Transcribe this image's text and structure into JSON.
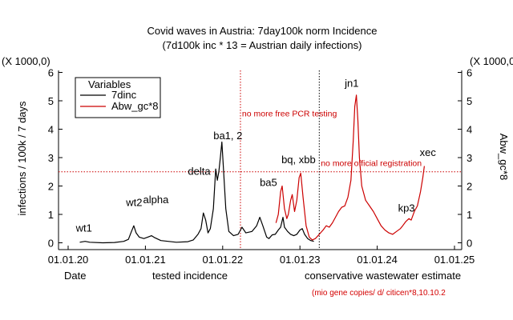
{
  "chart_data": {
    "type": "line",
    "title": "Covid waves in Austria: 7day100k norm Incidence",
    "subtitle": "(7d100k inc * 13 = Austrian daily infections)",
    "ylabel_left": "infections / 100k / 7 days",
    "ylabel_right": "Abw_gc*8",
    "y_multiplier_left": "(X 1000,0)",
    "y_multiplier_right": "(X 1000,0)",
    "xlabel": "Date",
    "x_caption_left": "tested incidence",
    "x_caption_right": "conservative wastewater estimate",
    "x_caption_note": "(mio gene copies/ d/ citicen*8,10.10.2",
    "ylim": [
      0,
      6
    ],
    "xlim": [
      2019.95,
      2025.05
    ],
    "y_ticks": [
      "0",
      "1",
      "2",
      "3",
      "4",
      "5",
      "6"
    ],
    "x_ticks": [
      {
        "label": "01.01.20",
        "value": 2020
      },
      {
        "label": "01.01.21",
        "value": 2021
      },
      {
        "label": "01.01.22",
        "value": 2022
      },
      {
        "label": "01.01.23",
        "value": 2023
      },
      {
        "label": "01.01.24",
        "value": 2024
      },
      {
        "label": "01.01.25",
        "value": 2025
      }
    ],
    "legend": {
      "title": "Variables",
      "position": "top-left"
    },
    "series": [
      {
        "name": "7dinc",
        "color": "#000000",
        "points": [
          [
            2020.15,
            0.02
          ],
          [
            2020.22,
            0.05
          ],
          [
            2020.28,
            0.02
          ],
          [
            2020.45,
            0.0
          ],
          [
            2020.6,
            0.01
          ],
          [
            2020.72,
            0.05
          ],
          [
            2020.78,
            0.12
          ],
          [
            2020.82,
            0.4
          ],
          [
            2020.85,
            0.6
          ],
          [
            2020.88,
            0.35
          ],
          [
            2020.92,
            0.2
          ],
          [
            2020.98,
            0.15
          ],
          [
            2021.03,
            0.2
          ],
          [
            2021.08,
            0.25
          ],
          [
            2021.12,
            0.18
          ],
          [
            2021.2,
            0.08
          ],
          [
            2021.4,
            0.02
          ],
          [
            2021.55,
            0.04
          ],
          [
            2021.62,
            0.1
          ],
          [
            2021.68,
            0.3
          ],
          [
            2021.72,
            0.5
          ],
          [
            2021.75,
            1.05
          ],
          [
            2021.78,
            0.8
          ],
          [
            2021.81,
            0.35
          ],
          [
            2021.84,
            0.5
          ],
          [
            2021.88,
            1.2
          ],
          [
            2021.91,
            2.6
          ],
          [
            2021.93,
            2.2
          ],
          [
            2021.95,
            2.5
          ],
          [
            2021.97,
            3.0
          ],
          [
            2021.99,
            3.55
          ],
          [
            2022.01,
            2.6
          ],
          [
            2022.04,
            1.2
          ],
          [
            2022.08,
            0.4
          ],
          [
            2022.14,
            0.25
          ],
          [
            2022.2,
            0.3
          ],
          [
            2022.25,
            0.55
          ],
          [
            2022.3,
            0.35
          ],
          [
            2022.38,
            0.4
          ],
          [
            2022.44,
            0.6
          ],
          [
            2022.48,
            0.9
          ],
          [
            2022.52,
            0.6
          ],
          [
            2022.57,
            0.2
          ],
          [
            2022.6,
            0.15
          ],
          [
            2022.64,
            0.28
          ],
          [
            2022.68,
            0.3
          ],
          [
            2022.72,
            0.45
          ],
          [
            2022.75,
            0.55
          ],
          [
            2022.78,
            0.9
          ],
          [
            2022.8,
            0.55
          ],
          [
            2022.84,
            0.4
          ],
          [
            2022.88,
            0.3
          ],
          [
            2022.92,
            0.25
          ],
          [
            2022.96,
            0.3
          ],
          [
            2023.0,
            0.45
          ],
          [
            2023.03,
            0.5
          ],
          [
            2023.06,
            0.3
          ],
          [
            2023.1,
            0.15
          ],
          [
            2023.14,
            0.08
          ],
          [
            2023.18,
            0.05
          ]
        ]
      },
      {
        "name": "Abw_gc*8",
        "color": "#cc0000",
        "points": [
          [
            2022.69,
            0.7
          ],
          [
            2022.72,
            1.0
          ],
          [
            2022.75,
            1.8
          ],
          [
            2022.77,
            2.0
          ],
          [
            2022.8,
            1.2
          ],
          [
            2022.83,
            0.85
          ],
          [
            2022.85,
            1.0
          ],
          [
            2022.88,
            1.5
          ],
          [
            2022.9,
            1.7
          ],
          [
            2022.93,
            1.1
          ],
          [
            2022.96,
            1.5
          ],
          [
            2022.99,
            2.3
          ],
          [
            2023.01,
            2.45
          ],
          [
            2023.04,
            1.6
          ],
          [
            2023.08,
            0.6
          ],
          [
            2023.12,
            0.2
          ],
          [
            2023.16,
            0.1
          ],
          [
            2023.2,
            0.15
          ],
          [
            2023.25,
            0.3
          ],
          [
            2023.3,
            0.45
          ],
          [
            2023.34,
            0.6
          ],
          [
            2023.38,
            0.55
          ],
          [
            2023.42,
            0.7
          ],
          [
            2023.46,
            0.9
          ],
          [
            2023.5,
            1.1
          ],
          [
            2023.54,
            1.25
          ],
          [
            2023.58,
            1.3
          ],
          [
            2023.62,
            1.6
          ],
          [
            2023.66,
            2.2
          ],
          [
            2023.69,
            3.6
          ],
          [
            2023.71,
            4.8
          ],
          [
            2023.73,
            5.2
          ],
          [
            2023.75,
            4.3
          ],
          [
            2023.77,
            3.0
          ],
          [
            2023.8,
            2.0
          ],
          [
            2023.85,
            1.5
          ],
          [
            2023.9,
            1.3
          ],
          [
            2023.95,
            1.1
          ],
          [
            2024.0,
            0.85
          ],
          [
            2024.05,
            0.6
          ],
          [
            2024.1,
            0.45
          ],
          [
            2024.15,
            0.35
          ],
          [
            2024.2,
            0.3
          ],
          [
            2024.25,
            0.4
          ],
          [
            2024.3,
            0.5
          ],
          [
            2024.33,
            0.6
          ],
          [
            2024.37,
            0.75
          ],
          [
            2024.41,
            0.85
          ],
          [
            2024.44,
            0.8
          ],
          [
            2024.48,
            1.1
          ],
          [
            2024.52,
            1.3
          ],
          [
            2024.56,
            1.8
          ],
          [
            2024.59,
            2.3
          ],
          [
            2024.61,
            2.7
          ]
        ]
      }
    ],
    "reference_lines": [
      {
        "orientation": "vertical",
        "x": 2022.23,
        "style": "dotted",
        "color": "#cc0000"
      },
      {
        "orientation": "vertical",
        "x": 2023.25,
        "style": "dotted",
        "color": "#000000"
      },
      {
        "orientation": "horizontal",
        "y": 2.5,
        "style": "dotted",
        "color": "#cc0000"
      }
    ],
    "annotations": [
      {
        "text": "wt1",
        "x": 2020.1,
        "y": 0.4,
        "color": "#000000"
      },
      {
        "text": "wt2",
        "x": 2020.75,
        "y": 1.3,
        "color": "#000000"
      },
      {
        "text": "alpha",
        "x": 2020.97,
        "y": 1.4,
        "color": "#000000"
      },
      {
        "text": "delta",
        "x": 2021.55,
        "y": 2.4,
        "color": "#000000"
      },
      {
        "text": "ba1, 2",
        "x": 2021.88,
        "y": 3.65,
        "color": "#000000"
      },
      {
        "text": "ba5",
        "x": 2022.48,
        "y": 2.0,
        "color": "#000000"
      },
      {
        "text": "bq, xbb",
        "x": 2022.76,
        "y": 2.8,
        "color": "#000000"
      },
      {
        "text": "jn1",
        "x": 2023.58,
        "y": 5.5,
        "color": "#000000"
      },
      {
        "text": "kp3",
        "x": 2024.27,
        "y": 1.1,
        "color": "#000000"
      },
      {
        "text": "xec",
        "x": 2024.55,
        "y": 3.05,
        "color": "#000000"
      },
      {
        "text": "no more free PCR testing",
        "x": 2022.25,
        "y": 4.45,
        "color": "#cc0000"
      },
      {
        "text": "no more official registration",
        "x": 2023.27,
        "y": 2.7,
        "color": "#cc0000"
      }
    ]
  },
  "colors": {
    "axis": "#000000",
    "series1": "#000000",
    "series2": "#cc0000",
    "annotation_red": "#cc0000"
  }
}
